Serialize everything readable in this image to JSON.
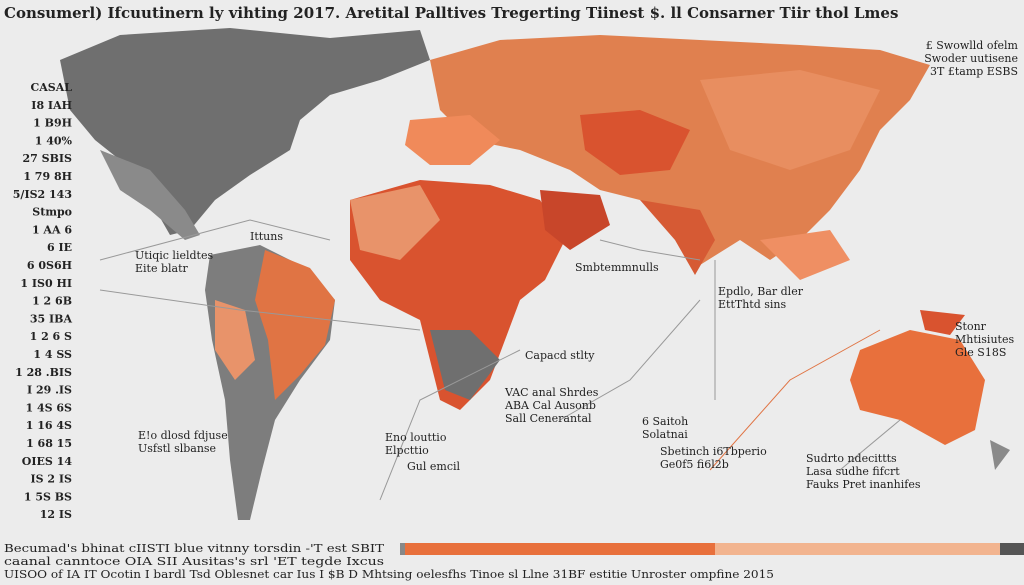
{
  "title": "Consumerl) Ifcuutinern ly vihting 2017. Aretital Palltives Tregerting Tiinest $. ll Consarner Tiir thol Lmes",
  "top_right": [
    "£ Swowlld ofelm",
    "Swoder uutisene",
    "3T £tamp ESBS"
  ],
  "left_labels": [
    "CASAL",
    "I8 IAH",
    "1 B9H",
    "1 40%",
    "27 SBIS",
    "1 79 8H",
    "5/IS2 143",
    "Stmpo",
    "1 AA 6",
    "6 IE",
    "6 0S6H",
    "1 IS0 HI",
    "1 2 6B",
    "35 IBA",
    "1 2 6 S",
    "1 4 SS",
    "1 28 .BIS",
    "I 29 .IS",
    "1 4S 6S",
    "1 16 4S",
    "1 68 15",
    "OIES 14",
    "IS 2 IS",
    "1 5S BS",
    "12 IS"
  ],
  "annotations": [
    {
      "lines": [
        "Ittuns"
      ]
    },
    {
      "lines": [
        "Utiqic lieldtes",
        "Eite blatr"
      ]
    },
    {
      "lines": [
        "Capacd stlty"
      ]
    },
    {
      "lines": [
        "Smbtemmnulls"
      ]
    },
    {
      "lines": [
        "Epdlo, Bar dler",
        "EttThtd sins"
      ]
    },
    {
      "lines": [
        "VAC anal Shrdes",
        "ABA Cal Ausonb",
        "Sall Cenerantal"
      ]
    },
    {
      "lines": [
        "E!o dlosd fdjuse",
        "Usfstl slbanse"
      ]
    },
    {
      "lines": [
        "Eno louttio",
        "Elpcttio"
      ]
    },
    {
      "lines": [
        "Gul emcil"
      ]
    },
    {
      "lines": [
        "6 Saitoh",
        "Solatnai"
      ]
    },
    {
      "lines": [
        "Sbetinch i6Tbperio",
        "Ge0f5 fi6l2b"
      ]
    },
    {
      "lines": [
        "Sudrto ndecittts",
        "Lasa sudhe fifcrt",
        "Fauks Pret inanhifes"
      ]
    },
    {
      "lines": [
        "Stonr",
        "Mhtisiutes",
        "Gle S18S"
      ]
    }
  ],
  "footer": [
    "Becumad's bhinat cIISTI blue vitnny torsdin -'T est SBIT",
    "caanal canntoce OIA SII Ausitas's srl 'ET tegde Ixcus",
    "UISOO of IA IT Ocotin I bardl Tsd Oblesnet car Ius I $B D Mhtsing oelesfhs Tinoe sl Llne 31BF estitie Unroster ompfine 2015"
  ]
}
